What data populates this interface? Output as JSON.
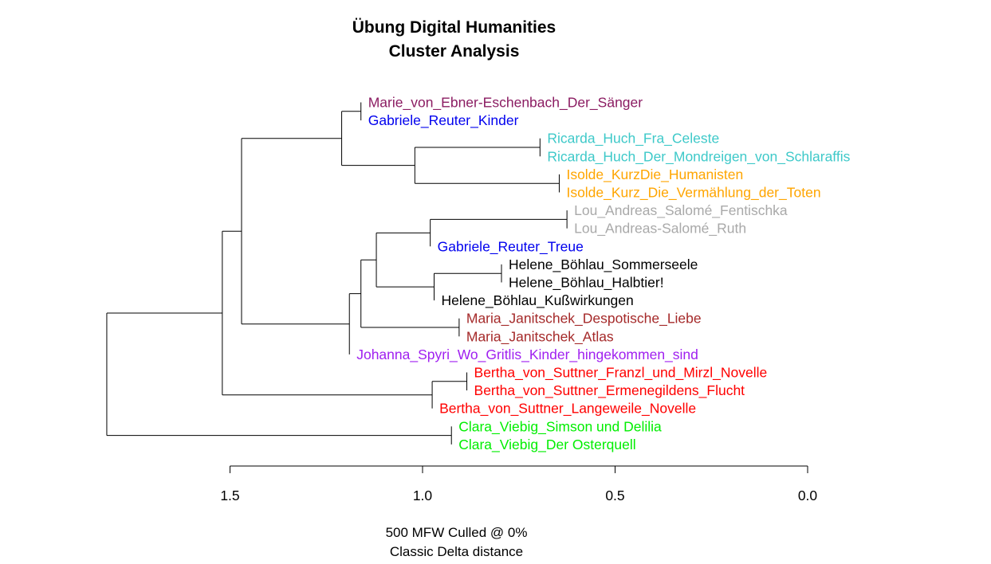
{
  "title_line1": "Übung Digital Humanities",
  "title_line2": "Cluster Analysis",
  "subtitle_line1": "500 MFW  Culled @ 0%",
  "subtitle_line2": "Classic Delta distance",
  "chart_data": {
    "type": "dendrogram",
    "orientation": "horizontal",
    "xlim": [
      1.5,
      0.0
    ],
    "x_ticks": [
      1.5,
      1.0,
      0.5,
      0.0
    ],
    "x_tick_labels": [
      "1.5",
      "1.0",
      "0.5",
      "0.0"
    ],
    "leaves": [
      {
        "label": "Marie_von_Ebner-Eschenbach_Der_Sänger",
        "color": "#8b1c62"
      },
      {
        "label": "Gabriele_Reuter_Kinder",
        "color": "#0000ee"
      },
      {
        "label": "Ricarda_Huch_Fra_Celeste",
        "color": "#3ec9c9"
      },
      {
        "label": "Ricarda_Huch_Der_Mondreigen_von_Schlaraffis",
        "color": "#3ec9c9"
      },
      {
        "label": "Isolde_KurzDie_Humanisten",
        "color": "#ffa500"
      },
      {
        "label": "Isolde_Kurz_Die_Vermählung_der_Toten",
        "color": "#ffa500"
      },
      {
        "label": "Lou_Andreas_Salomé_Fentischka",
        "color": "#a9a9a9"
      },
      {
        "label": "Lou_Andreas-Salomé_Ruth",
        "color": "#a9a9a9"
      },
      {
        "label": "Gabriele_Reuter_Treue",
        "color": "#0000ee"
      },
      {
        "label": "Helene_Böhlau_Sommerseele",
        "color": "#000000"
      },
      {
        "label": "Helene_Böhlau_Halbtier!",
        "color": "#000000"
      },
      {
        "label": "Helene_Böhlau_Kußwirkungen",
        "color": "#000000"
      },
      {
        "label": "Maria_Janitschek_Despotische_Liebe",
        "color": "#a52a2a"
      },
      {
        "label": "Maria_Janitschek_Atlas",
        "color": "#a52a2a"
      },
      {
        "label": "Johanna_Spyri_Wo_Gritlis_Kinder_hingekommen_sind",
        "color": "#a020f0"
      },
      {
        "label": "Bertha_von_Suttner_Franzl_und_Mirzl_Novelle",
        "color": "#ff0000"
      },
      {
        "label": "Bertha_von_Suttner_Ermenegildens_Flucht",
        "color": "#ff0000"
      },
      {
        "label": "Bertha_von_Suttner_Langeweile_Novelle",
        "color": "#ff0000"
      },
      {
        "label": "Clara_Viebig_Simson und Delilia",
        "color": "#00ee00"
      },
      {
        "label": "Clara_Viebig_Der Osterquell",
        "color": "#00ee00"
      }
    ],
    "merges": [
      {
        "id": "m0",
        "children": [
          "L0",
          "L1"
        ],
        "height": 1.16
      },
      {
        "id": "m1",
        "children": [
          "L2",
          "L3"
        ],
        "height": 0.695
      },
      {
        "id": "m2",
        "children": [
          "L4",
          "L5"
        ],
        "height": 0.645
      },
      {
        "id": "m3",
        "children": [
          "m1",
          "m2"
        ],
        "height": 1.02
      },
      {
        "id": "m4",
        "children": [
          "m0",
          "m3"
        ],
        "height": 1.21
      },
      {
        "id": "m5",
        "children": [
          "L6",
          "L7"
        ],
        "height": 0.625
      },
      {
        "id": "m6",
        "children": [
          "m5",
          "L8"
        ],
        "height": 0.98
      },
      {
        "id": "m7",
        "children": [
          "L9",
          "L10"
        ],
        "height": 0.795
      },
      {
        "id": "m8",
        "children": [
          "m7",
          "L11"
        ],
        "height": 0.97
      },
      {
        "id": "m9",
        "children": [
          "m6",
          "m8"
        ],
        "height": 1.12
      },
      {
        "id": "m10",
        "children": [
          "L12",
          "L13"
        ],
        "height": 0.905
      },
      {
        "id": "m11",
        "children": [
          "m9",
          "m10"
        ],
        "height": 1.16
      },
      {
        "id": "m12",
        "children": [
          "m11",
          "L14"
        ],
        "height": 1.19
      },
      {
        "id": "m13",
        "children": [
          "m4",
          "m12"
        ],
        "height": 1.47
      },
      {
        "id": "m14",
        "children": [
          "L15",
          "L16"
        ],
        "height": 0.885
      },
      {
        "id": "m15",
        "children": [
          "m14",
          "L17"
        ],
        "height": 0.975
      },
      {
        "id": "m16",
        "children": [
          "m13",
          "m15"
        ],
        "height": 1.52
      },
      {
        "id": "m17",
        "children": [
          "L18",
          "L19"
        ],
        "height": 0.925
      },
      {
        "id": "m18",
        "children": [
          "m16",
          "m17"
        ],
        "height": 1.82
      }
    ]
  }
}
